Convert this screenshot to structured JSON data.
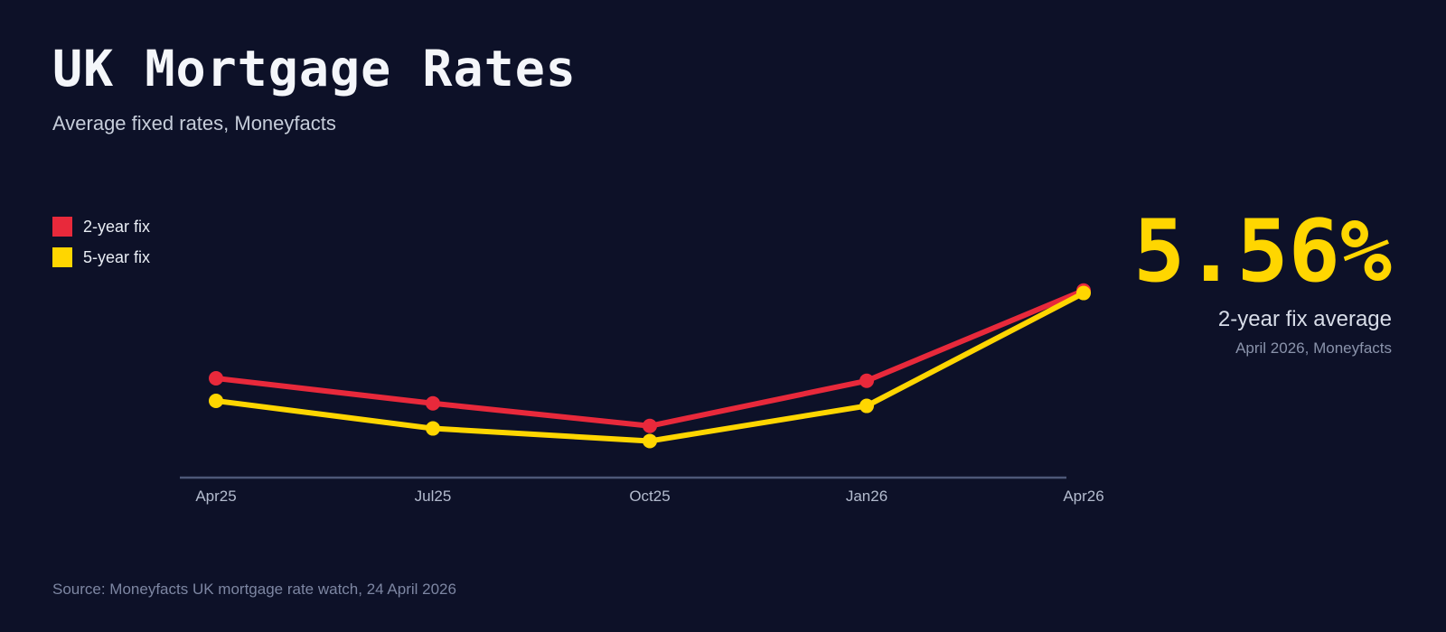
{
  "header": {
    "title": "UK Mortgage Rates",
    "subtitle": "Average fixed rates, Moneyfacts"
  },
  "stat": {
    "value": "5.56%",
    "label": "2-year fix average",
    "sub": "April 2026, Moneyfacts"
  },
  "footer": {
    "source": "Source: Moneyfacts UK mortgage rate watch, 24 April 2026"
  },
  "colors": {
    "background": "#0d1128",
    "red": "#e8293b",
    "yellow": "#ffd600",
    "axis": "#4d5778",
    "tick_label": "#b4bccf"
  },
  "chart_data": {
    "type": "line",
    "title": "UK Mortgage Rates",
    "subtitle": "Average fixed rates, Moneyfacts",
    "categories": [
      "Apr25",
      "Jul25",
      "Oct25",
      "Jan26",
      "Apr26"
    ],
    "series": [
      {
        "name": "2-year fix",
        "color": "#e8293b",
        "values": [
          5.21,
          5.11,
          5.02,
          5.2,
          5.56
        ]
      },
      {
        "name": "5-year fix",
        "color": "#ffd600",
        "values": [
          5.12,
          5.01,
          4.96,
          5.1,
          5.55
        ]
      }
    ],
    "xlabel": "",
    "ylabel": "",
    "ylim": [
      4.85,
      5.75
    ],
    "grid": false,
    "legend_position": "top-left",
    "markers": true,
    "highlight": {
      "series": "2-year fix",
      "category": "Apr26",
      "value": 5.56
    }
  }
}
